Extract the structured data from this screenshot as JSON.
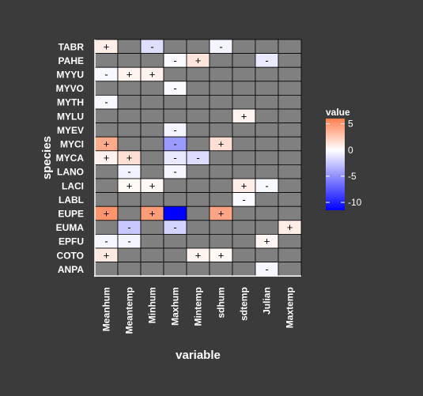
{
  "chart_data": {
    "type": "heatmap",
    "xlabel": "variable",
    "ylabel": "species",
    "x_categories": [
      "Meanhum",
      "Meantemp",
      "Minhum",
      "Maxhum",
      "Mintemp",
      "sdhum",
      "sdtemp",
      "Julian",
      "Maxtemp"
    ],
    "y_categories": [
      "TABR",
      "PAHE",
      "MYYU",
      "MYVO",
      "MYTH",
      "MYLU",
      "MYEV",
      "MYCI",
      "MYCA",
      "LANO",
      "LACI",
      "LABL",
      "EUPE",
      "EUMA",
      "EPFU",
      "COTO",
      "ANPA"
    ],
    "legend": {
      "title": "value",
      "ticks": [
        5,
        0,
        -5,
        -10
      ],
      "range": [
        -11.5,
        6
      ],
      "colors": {
        "low": "#0000ff",
        "mid": "#ffffff",
        "high": "#ff7f50"
      }
    },
    "na_color": "#808080",
    "cells": [
      {
        "species": "TABR",
        "variable": "Meanhum",
        "value": 0.8,
        "sign": "+"
      },
      {
        "species": "TABR",
        "variable": "Minhum",
        "value": -1.5,
        "sign": "-"
      },
      {
        "species": "TABR",
        "variable": "sdhum",
        "value": -0.5,
        "sign": "-"
      },
      {
        "species": "PAHE",
        "variable": "Maxhum",
        "value": -0.2,
        "sign": "-"
      },
      {
        "species": "PAHE",
        "variable": "Mintemp",
        "value": 1.2,
        "sign": "+"
      },
      {
        "species": "PAHE",
        "variable": "Julian",
        "value": -1.0,
        "sign": "-"
      },
      {
        "species": "MYYU",
        "variable": "Meanhum",
        "value": -0.3,
        "sign": "-"
      },
      {
        "species": "MYYU",
        "variable": "Meantemp",
        "value": 0.5,
        "sign": "+"
      },
      {
        "species": "MYYU",
        "variable": "Minhum",
        "value": 0.6,
        "sign": "+"
      },
      {
        "species": "MYVO",
        "variable": "Maxhum",
        "value": -0.2,
        "sign": "-"
      },
      {
        "species": "MYTH",
        "variable": "Meanhum",
        "value": -0.3,
        "sign": "-"
      },
      {
        "species": "MYLU",
        "variable": "sdtemp",
        "value": 0.5,
        "sign": "+"
      },
      {
        "species": "MYEV",
        "variable": "Maxhum",
        "value": -0.5,
        "sign": "-"
      },
      {
        "species": "MYCI",
        "variable": "Meanhum",
        "value": 4.0,
        "sign": "+"
      },
      {
        "species": "MYCI",
        "variable": "Maxhum",
        "value": -4.5,
        "sign": "-"
      },
      {
        "species": "MYCI",
        "variable": "sdhum",
        "value": 1.5,
        "sign": "+"
      },
      {
        "species": "MYCA",
        "variable": "Meanhum",
        "value": 0.6,
        "sign": "+"
      },
      {
        "species": "MYCA",
        "variable": "Meantemp",
        "value": 1.5,
        "sign": "+"
      },
      {
        "species": "MYCA",
        "variable": "Maxhum",
        "value": -1.0,
        "sign": "-"
      },
      {
        "species": "MYCA",
        "variable": "Mintemp",
        "value": -1.6,
        "sign": "-"
      },
      {
        "species": "LANO",
        "variable": "Meantemp",
        "value": -0.6,
        "sign": "-"
      },
      {
        "species": "LANO",
        "variable": "Maxhum",
        "value": -0.4,
        "sign": "-"
      },
      {
        "species": "LACI",
        "variable": "Meantemp",
        "value": 0.3,
        "sign": "+"
      },
      {
        "species": "LACI",
        "variable": "Minhum",
        "value": 0.3,
        "sign": "+"
      },
      {
        "species": "LACI",
        "variable": "sdtemp",
        "value": 0.8,
        "sign": "+"
      },
      {
        "species": "LACI",
        "variable": "Julian",
        "value": -0.3,
        "sign": "-"
      },
      {
        "species": "LABL",
        "variable": "sdtemp",
        "value": -0.2,
        "sign": "-"
      },
      {
        "species": "EUPE",
        "variable": "Meanhum",
        "value": 5.0,
        "sign": "+"
      },
      {
        "species": "EUPE",
        "variable": "Minhum",
        "value": 4.6,
        "sign": "+"
      },
      {
        "species": "EUPE",
        "variable": "Maxhum",
        "value": -11.5,
        "sign": ""
      },
      {
        "species": "EUPE",
        "variable": "sdhum",
        "value": 4.2,
        "sign": "+"
      },
      {
        "species": "EUMA",
        "variable": "Meantemp",
        "value": -2.5,
        "sign": "-"
      },
      {
        "species": "EUMA",
        "variable": "Maxhum",
        "value": -2.0,
        "sign": "-"
      },
      {
        "species": "EUMA",
        "variable": "Maxtemp",
        "value": 0.8,
        "sign": "+"
      },
      {
        "species": "EPFU",
        "variable": "Meanhum",
        "value": -0.4,
        "sign": "-"
      },
      {
        "species": "EPFU",
        "variable": "Meantemp",
        "value": -0.5,
        "sign": "-"
      },
      {
        "species": "EPFU",
        "variable": "Julian",
        "value": 0.4,
        "sign": "+"
      },
      {
        "species": "COTO",
        "variable": "Meanhum",
        "value": 1.0,
        "sign": "+"
      },
      {
        "species": "COTO",
        "variable": "Mintemp",
        "value": 0.5,
        "sign": "+"
      },
      {
        "species": "COTO",
        "variable": "sdhum",
        "value": 0.3,
        "sign": "+"
      },
      {
        "species": "ANPA",
        "variable": "Julian",
        "value": -0.4,
        "sign": "-"
      }
    ]
  }
}
